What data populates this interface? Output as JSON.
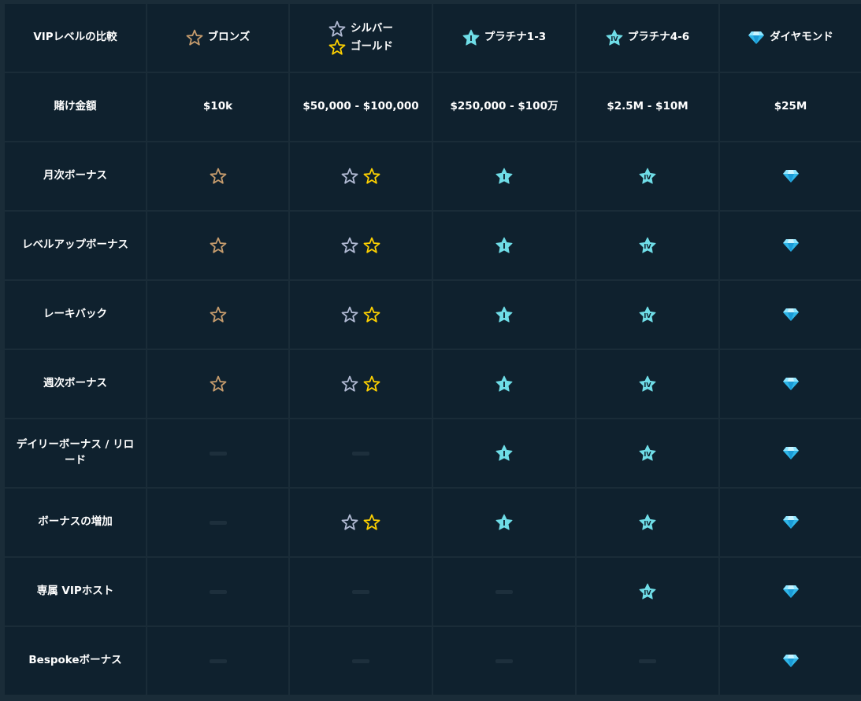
{
  "table": {
    "corner_label": "VIPレベルの比較",
    "tiers": {
      "bronze": "ブロンズ",
      "silver": "シルバー",
      "gold": "ゴールド",
      "plat13": "プラチナ1-3",
      "plat46": "プラチナ4-6",
      "diamond": "ダイヤモンド"
    },
    "wager": {
      "label": "賭け金額",
      "bronze": "$10k",
      "silvergold": "$50,000 - $100,000",
      "plat13": "$250,000 - $100万",
      "plat46": "$2.5M - $10M",
      "diamond": "$25M"
    },
    "rows": [
      "月次ボーナス",
      "レベルアップボーナス",
      "レーキバック",
      "週次ボーナス",
      "デイリーボーナス / リロード",
      "ボーナスの増加",
      "専属 VIPホスト",
      "Bespokeボーナス"
    ]
  },
  "availability": [
    [
      true,
      true,
      true,
      true,
      true
    ],
    [
      true,
      true,
      true,
      true,
      true
    ],
    [
      true,
      true,
      true,
      true,
      true
    ],
    [
      true,
      true,
      true,
      true,
      true
    ],
    [
      false,
      false,
      true,
      true,
      true
    ],
    [
      false,
      true,
      true,
      true,
      true
    ],
    [
      false,
      false,
      false,
      true,
      true
    ],
    [
      false,
      false,
      false,
      false,
      true
    ]
  ],
  "icons": {
    "bronze": "bronze-star-outline-icon",
    "silver": "silver-star-outline-icon",
    "gold": "gold-star-outline-icon",
    "plat13": "platinum-star-I-icon",
    "plat46": "platinum-star-IV-icon",
    "diamond": "diamond-icon"
  },
  "colors": {
    "bronze": "#c69c6d",
    "silver": "#b1bad3",
    "gold": "#fed100",
    "platinum": "#6fdde7",
    "diamond": "#3bc9f5",
    "cell_bg": "#0f212e",
    "page_bg": "#1a2c38"
  }
}
